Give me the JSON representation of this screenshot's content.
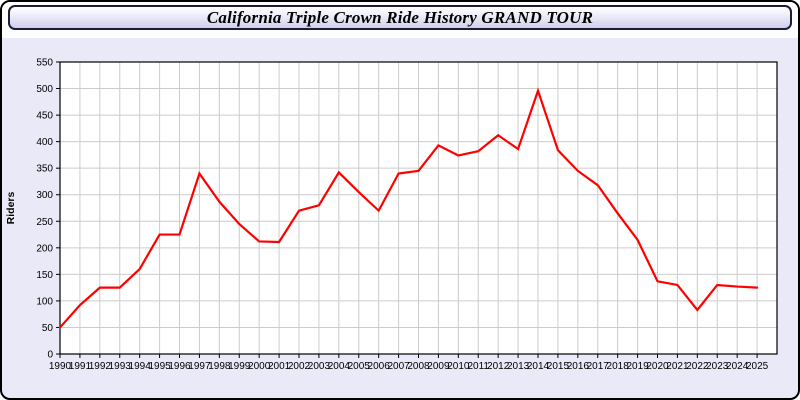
{
  "header": {
    "title": "California Triple Crown Ride History GRAND TOUR"
  },
  "chart_data": {
    "type": "line",
    "title": "California Triple Crown Ride History GRAND TOUR",
    "xlabel": "",
    "ylabel": "Riders",
    "ylim": [
      0,
      550
    ],
    "yticks": [
      0,
      50,
      100,
      150,
      200,
      250,
      300,
      350,
      400,
      450,
      500,
      550
    ],
    "grid": true,
    "legend": false,
    "line_color": "#ff0000",
    "grid_color": "#cccccc",
    "axis_color": "#000000",
    "plot_background": "#ffffff",
    "page_background": "#e9e9f8",
    "x": [
      1990,
      1991,
      1992,
      1993,
      1994,
      1995,
      1996,
      1997,
      1998,
      1999,
      2000,
      2001,
      2002,
      2003,
      2004,
      2005,
      2006,
      2007,
      2008,
      2009,
      2010,
      2011,
      2012,
      2013,
      2014,
      2015,
      2016,
      2017,
      2018,
      2019,
      2020,
      2021,
      2022,
      2023,
      2024,
      2025
    ],
    "series": [
      {
        "name": "Riders",
        "color": "#ff0000",
        "values": [
          50,
          92,
          125,
          125,
          160,
          225,
          225,
          340,
          287,
          245,
          212,
          211,
          270,
          280,
          342,
          305,
          270,
          340,
          345,
          393,
          374,
          382,
          412,
          386,
          496,
          384,
          345,
          318,
          265,
          215,
          137,
          130,
          83,
          130,
          127,
          125
        ]
      }
    ]
  }
}
